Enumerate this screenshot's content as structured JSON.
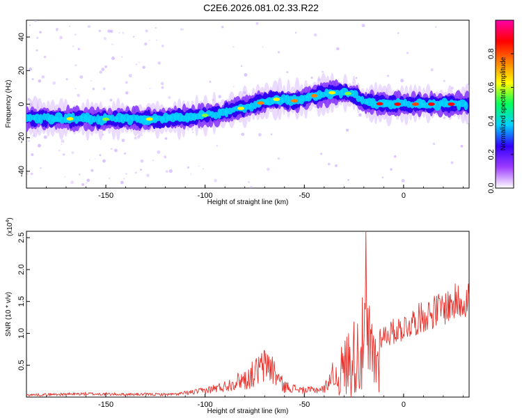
{
  "title": "C2E6.2026.081.02.33.R22",
  "chart_data": [
    {
      "type": "heatmap",
      "xlabel": "Height of straight line (km)",
      "ylabel": "Frequency (Hz)",
      "xlim": [
        -190,
        33
      ],
      "ylim": [
        -50,
        50
      ],
      "xticks": [
        -150,
        -100,
        -50,
        0
      ],
      "yticks": [
        -40,
        -20,
        0,
        20,
        40
      ],
      "colorbar": {
        "label": "Normalized spectral amplitude",
        "range": [
          0,
          1
        ],
        "ticks": [
          0.0,
          0.2,
          0.4,
          0.6,
          0.8
        ],
        "colors": [
          "#ffffff",
          "#9e3cff",
          "#3300ff",
          "#00d0ff",
          "#00ff60",
          "#ffff00",
          "#ff8000",
          "#ff0000",
          "#ff00aa"
        ]
      },
      "ridge": [
        {
          "x": -190,
          "y": -8
        },
        {
          "x": -160,
          "y": -9
        },
        {
          "x": -130,
          "y": -9
        },
        {
          "x": -110,
          "y": -8
        },
        {
          "x": -95,
          "y": -6
        },
        {
          "x": -80,
          "y": -2
        },
        {
          "x": -65,
          "y": 3
        },
        {
          "x": -55,
          "y": 2
        },
        {
          "x": -45,
          "y": 5
        },
        {
          "x": -35,
          "y": 7
        },
        {
          "x": -25,
          "y": 6
        },
        {
          "x": -20,
          "y": 1
        },
        {
          "x": -10,
          "y": 0
        },
        {
          "x": 0,
          "y": 0
        },
        {
          "x": 15,
          "y": 0
        },
        {
          "x": 33,
          "y": 0
        }
      ]
    },
    {
      "type": "line",
      "xlabel": "Height of straight line (km)",
      "ylabel": "SNR (10 * v/v)",
      "multiplier": "(x10",
      "multiplier_exp": "4",
      "multiplier_close": ")",
      "xlim": [
        -190,
        33
      ],
      "ylim": [
        0,
        2.6
      ],
      "xticks": [
        -150,
        -100,
        -50,
        0
      ],
      "yticks": [
        0.5,
        1.0,
        1.5,
        2.0,
        2.5
      ],
      "color": "#e8302a",
      "envelope": [
        {
          "x": -190,
          "y": 0.04
        },
        {
          "x": -160,
          "y": 0.06
        },
        {
          "x": -140,
          "y": 0.05
        },
        {
          "x": -115,
          "y": 0.05
        },
        {
          "x": -100,
          "y": 0.12
        },
        {
          "x": -90,
          "y": 0.2
        },
        {
          "x": -80,
          "y": 0.35
        },
        {
          "x": -72,
          "y": 0.6
        },
        {
          "x": -68,
          "y": 0.7
        },
        {
          "x": -60,
          "y": 0.2
        },
        {
          "x": -50,
          "y": 0.12
        },
        {
          "x": -40,
          "y": 0.15
        },
        {
          "x": -33,
          "y": 0.6
        },
        {
          "x": -28,
          "y": 1.0
        },
        {
          "x": -22,
          "y": 1.3
        },
        {
          "x": -19,
          "y": 1.6
        },
        {
          "x": -15,
          "y": 1.1
        },
        {
          "x": -10,
          "y": 1.1
        },
        {
          "x": 0,
          "y": 1.25
        },
        {
          "x": 10,
          "y": 1.45
        },
        {
          "x": 20,
          "y": 1.6
        },
        {
          "x": 33,
          "y": 1.8
        }
      ],
      "peak": {
        "x": -19,
        "y": 2.6
      }
    }
  ]
}
